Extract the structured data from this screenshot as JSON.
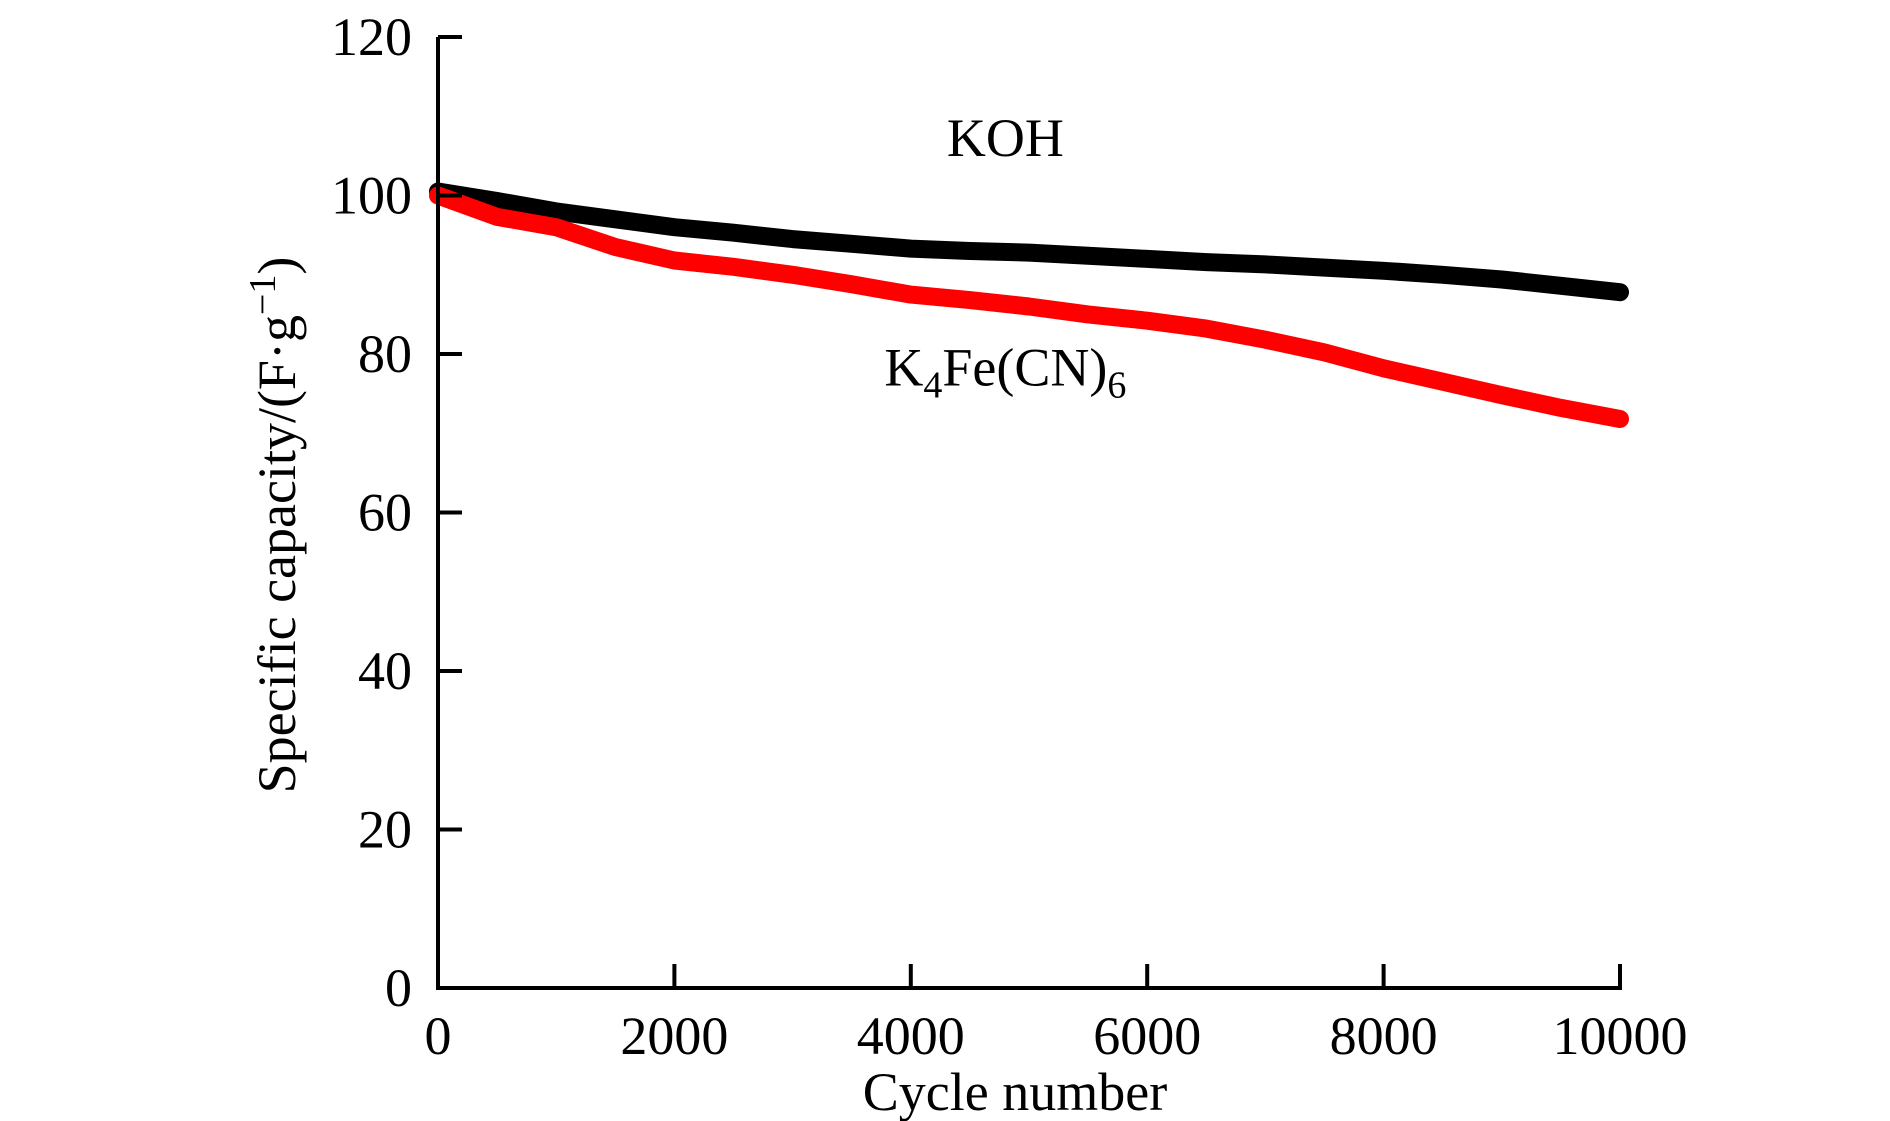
{
  "chart_data": {
    "type": "line",
    "xlabel": "Cycle number",
    "ylabel": "Specific capacity/(F·g",
    "ylabel_sup": "−1",
    "ylabel_close": ")",
    "xlim": [
      0,
      10000
    ],
    "ylim": [
      0,
      120
    ],
    "x_ticks": [
      0,
      2000,
      4000,
      6000,
      8000,
      10000
    ],
    "y_ticks": [
      0,
      20,
      40,
      60,
      80,
      100,
      120
    ],
    "grid": false,
    "series": [
      {
        "name": "KOH",
        "color": "#000000",
        "x": [
          0,
          500,
          1000,
          1500,
          2000,
          2500,
          3000,
          3500,
          4000,
          4500,
          5000,
          5500,
          6000,
          6500,
          7000,
          7500,
          8000,
          8500,
          9000,
          9500,
          10000
        ],
        "y": [
          100.5,
          99.3,
          98.0,
          97.0,
          96.0,
          95.3,
          94.5,
          93.9,
          93.3,
          93.0,
          92.8,
          92.4,
          92.0,
          91.6,
          91.3,
          90.9,
          90.5,
          90.0,
          89.4,
          88.6,
          87.8
        ]
      },
      {
        "name": "K₄Fe(CN)₆",
        "color": "#ff0000",
        "x": [
          0,
          500,
          1000,
          1500,
          2000,
          2500,
          3000,
          3500,
          4000,
          4500,
          5000,
          5500,
          6000,
          6500,
          7000,
          7500,
          8000,
          8500,
          9000,
          9500,
          10000
        ],
        "y": [
          100.0,
          97.3,
          96.0,
          93.5,
          91.8,
          91.0,
          90.0,
          88.8,
          87.5,
          86.8,
          86.0,
          85.0,
          84.2,
          83.2,
          81.8,
          80.2,
          78.2,
          76.5,
          74.8,
          73.2,
          71.8
        ]
      }
    ],
    "annotations": [
      {
        "text": "KOH",
        "series": 0,
        "at_x": 4800,
        "at_y": 105
      },
      {
        "text": "K₄Fe(CN)₆",
        "series": 1,
        "at_x": 4800,
        "at_y": 76
      }
    ]
  }
}
